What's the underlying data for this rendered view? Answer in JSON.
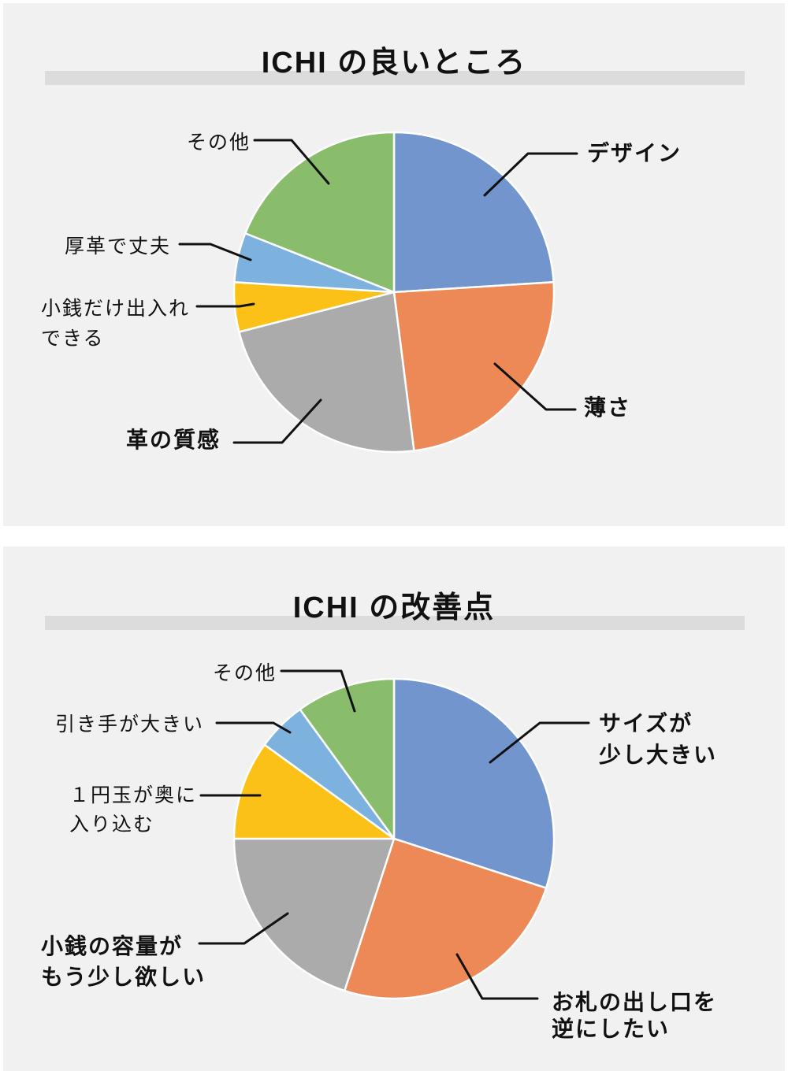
{
  "page": {
    "background": "#ffffff",
    "panel_background": "#f1f1f2",
    "title_highlight_color": "#dcdcdc",
    "text_color": "#111111",
    "leader_line_color": "#111111"
  },
  "chart_data": [
    {
      "type": "pie",
      "title": "ICHI の良いところ",
      "start_angle_deg": 0,
      "direction": "clockwise",
      "labels": [
        "デザイン",
        "薄さ",
        "革の質感",
        "小銭だけ出入れできる",
        "厚革で丈夫",
        "その他"
      ],
      "values": [
        24,
        24,
        23,
        5,
        5,
        19
      ],
      "colors": [
        "#7295ce",
        "#ec8956",
        "#ababab",
        "#fbc116",
        "#7eb2de",
        "#8abd6b"
      ],
      "legend": "none - callout labels with leader lines"
    },
    {
      "type": "pie",
      "title": "ICHI の改善点",
      "start_angle_deg": 0,
      "direction": "clockwise",
      "labels": [
        "サイズが少し大きい",
        "お札の出し口を逆にしたい",
        "小銭の容量がもう少し欲しい",
        "１円玉が奥に入り込む",
        "引き手が大きい",
        "その他"
      ],
      "values": [
        30,
        25,
        20,
        10,
        5,
        10
      ],
      "colors": [
        "#7295ce",
        "#ec8956",
        "#ababab",
        "#fbc116",
        "#7eb2de",
        "#8abd6b"
      ],
      "legend": "none - callout labels with leader lines"
    }
  ],
  "charts": [
    {
      "title": "ICHI の良いところ",
      "callouts": {
        "design": {
          "lines": [
            "デザイン"
          ]
        },
        "thinness": {
          "lines": [
            "薄さ"
          ]
        },
        "leather_texture": {
          "lines": [
            "革の質感"
          ]
        },
        "coins_in_out": {
          "lines": [
            "小銭だけ出入れ",
            "できる"
          ]
        },
        "thick_leather": {
          "lines": [
            "厚革で丈夫"
          ]
        },
        "others": {
          "lines": [
            "その他"
          ]
        }
      }
    },
    {
      "title": "ICHI の改善点",
      "callouts": {
        "size_large": {
          "lines": [
            "サイズが",
            "少し大きい"
          ]
        },
        "bill_outlet": {
          "lines": [
            "お札の出し口を",
            "逆にしたい"
          ]
        },
        "coin_capacity": {
          "lines": [
            "小銭の容量が",
            "もう少し欲しい"
          ]
        },
        "one_yen": {
          "lines": [
            "１円玉が奥に",
            "入り込む"
          ]
        },
        "pull_tab": {
          "lines": [
            "引き手が大きい"
          ]
        },
        "others": {
          "lines": [
            "その他"
          ]
        }
      }
    }
  ]
}
